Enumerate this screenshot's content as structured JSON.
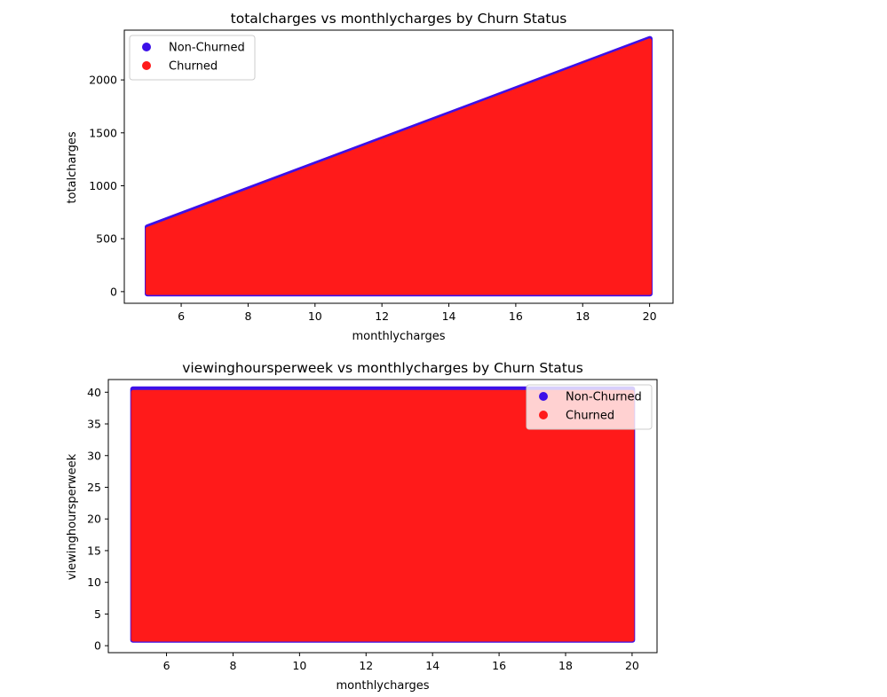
{
  "figure": {
    "background": "#ffffff"
  },
  "colors": {
    "non_churned": "#3c10e8",
    "churned": "#ff1a1a",
    "axis": "#000000"
  },
  "chart_data": [
    {
      "type": "scatter",
      "title": "totalcharges vs monthlycharges by Churn Status",
      "xlabel": "monthlycharges",
      "ylabel": "totalcharges",
      "xlim": [
        4.3,
        20.7
      ],
      "ylim": [
        -110,
        2470
      ],
      "xticks": [
        6,
        8,
        10,
        12,
        14,
        16,
        18,
        20
      ],
      "yticks": [
        0,
        500,
        1000,
        1500,
        2000
      ],
      "grid": false,
      "legend_position": "top-left",
      "series": [
        {
          "name": "Non-Churned",
          "color": "#3c10e8",
          "region": {
            "x": [
              4.99,
              20.01
            ],
            "y_min": -20,
            "y_max_at_x_min": 610,
            "y_max_at_x_max": 2390
          }
        },
        {
          "name": "Churned",
          "color": "#ff1a1a",
          "region": {
            "x": [
              5.0,
              20.0
            ],
            "y_min": -10,
            "y_max_at_x_min": 590,
            "y_max_at_x_max": 2370
          }
        }
      ]
    },
    {
      "type": "scatter",
      "title": "viewinghoursperweek vs monthlycharges by Churn Status",
      "xlabel": "monthlycharges",
      "ylabel": "viewinghoursperweek",
      "xlim": [
        4.25,
        20.75
      ],
      "ylim": [
        -1.1,
        42.0
      ],
      "xticks": [
        6,
        8,
        10,
        12,
        14,
        16,
        18,
        20
      ],
      "yticks": [
        0,
        5,
        10,
        15,
        20,
        25,
        30,
        35,
        40
      ],
      "grid": false,
      "legend_position": "top-right",
      "series": [
        {
          "name": "Non-Churned",
          "color": "#3c10e8",
          "region": {
            "x": [
              4.99,
              20.01
            ],
            "y": [
              0.9,
              40.5
            ]
          }
        },
        {
          "name": "Churned",
          "color": "#ff1a1a",
          "region": {
            "x": [
              5.0,
              20.0
            ],
            "y": [
              1.0,
              40.0
            ]
          }
        }
      ]
    }
  ]
}
